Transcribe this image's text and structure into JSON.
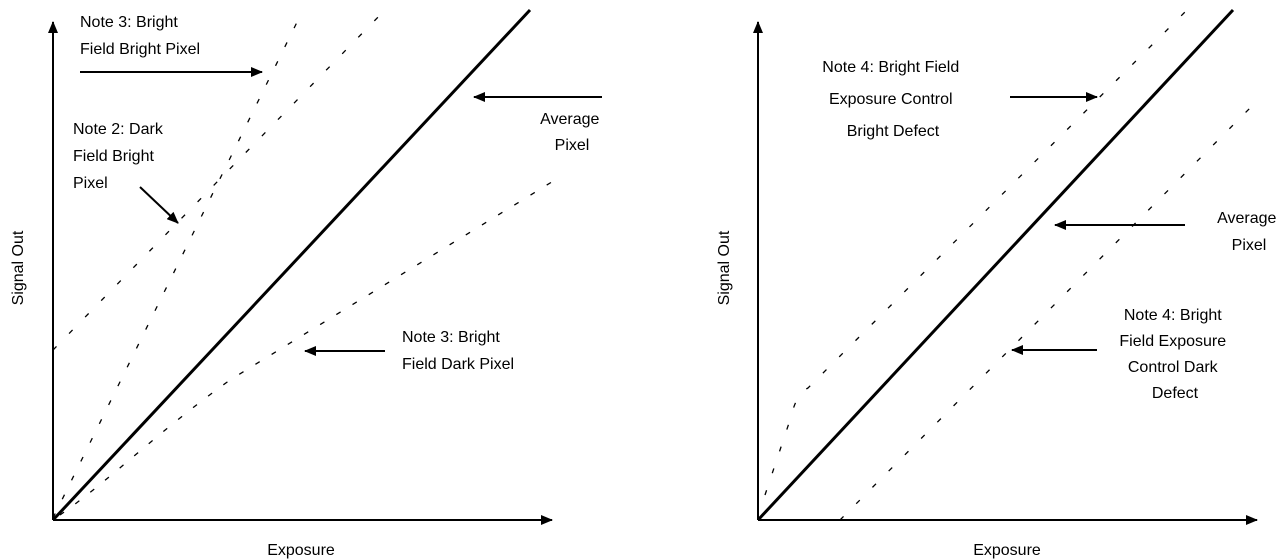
{
  "colors": {
    "ink": "#000000",
    "background": "#ffffff"
  },
  "left_diagram": {
    "x_axis_label": "Exposure",
    "y_axis_label": "Signal Out",
    "note_bright_field_bright_pixel": [
      "Note 3: Bright",
      "Field Bright Pixel"
    ],
    "note_dark_field_bright_pixel": [
      "Note 2: Dark",
      "Field Bright",
      "Pixel"
    ],
    "note_average_pixel": [
      "Average",
      "Pixel"
    ],
    "note_bright_field_dark_pixel": [
      "Note 3: Bright",
      "Field Dark Pixel"
    ]
  },
  "right_diagram": {
    "x_axis_label": "Exposure",
    "y_axis_label": "Signal Out",
    "note_exposure_control_bright_defect": [
      "Note 4: Bright Field",
      "Exposure Control",
      "Bright Defect"
    ],
    "note_average_pixel": [
      "Average",
      "Pixel"
    ],
    "note_exposure_control_dark_defect": [
      "Note 4: Bright",
      "Field Exposure",
      "Control Dark",
      "Defect"
    ]
  }
}
